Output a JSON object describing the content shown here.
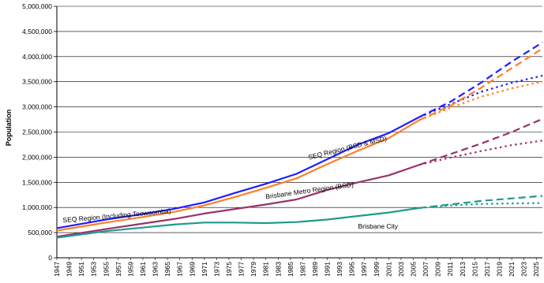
{
  "chart_data": {
    "type": "line",
    "title": "",
    "xlabel": "",
    "ylabel": "Population",
    "ylim": [
      0,
      5000000
    ],
    "xlim": [
      1947,
      2026
    ],
    "grid": "horizontal",
    "legend": "none",
    "y_ticks": [
      "0",
      "500,000",
      "1,000,000",
      "1,500,000",
      "2,000,000",
      "2,500,000",
      "3,000,000",
      "3,500,000",
      "4,000,000",
      "4,500,000",
      "5,000,000"
    ],
    "x_ticks": [
      "1947",
      "1949",
      "1951",
      "1953",
      "1955",
      "1957",
      "1959",
      "1961",
      "1963",
      "1965",
      "1967",
      "1969",
      "1971",
      "1973",
      "1975",
      "1977",
      "1979",
      "1981",
      "1983",
      "1985",
      "1987",
      "1989",
      "1991",
      "1993",
      "1995",
      "1997",
      "1999",
      "2001",
      "2003",
      "2005",
      "2007",
      "2009",
      "2011",
      "2013",
      "2015",
      "2017",
      "2019",
      "2021",
      "2023",
      "2025"
    ],
    "annotations": [
      {
        "text": "SEQ Region (Including Toowoomba)",
        "x": 1948,
        "y": 700000,
        "angle": -5
      },
      {
        "text": "SEQ Region (BSD & MSD)",
        "x": 1988,
        "y": 1950000,
        "angle": -14
      },
      {
        "text": "Brisbane Metro Region (BSD)",
        "x": 1981,
        "y": 1170000,
        "angle": -8
      },
      {
        "text": "Brisbane City",
        "x": 1996,
        "y": 580000,
        "angle": 0
      }
    ],
    "series": [
      {
        "color": "#1f1fff",
        "x": [
          1947,
          1955,
          1961,
          1966,
          1971,
          1976,
          1981,
          1986,
          1991,
          1996,
          2001,
          2006
        ],
        "values": [
          590000,
          760000,
          870000,
          970000,
          1100000,
          1290000,
          1470000,
          1670000,
          1960000,
          2250000,
          2480000,
          2800000
        ],
        "projections": [
          {
            "style": "dashed",
            "x": [
              2006,
              2011,
              2016,
              2021,
              2026
            ],
            "values": [
              2800000,
              3100000,
              3480000,
              3900000,
              4280000
            ]
          },
          {
            "style": "dotted",
            "x": [
              2006,
              2011,
              2016,
              2021,
              2026
            ],
            "values": [
              2800000,
              3050000,
              3300000,
              3480000,
              3620000
            ]
          }
        ]
      },
      {
        "color": "#ff7f27",
        "x": [
          1947,
          1955,
          1961,
          1966,
          1971,
          1976,
          1981,
          1986,
          1991,
          1996,
          2001,
          2006
        ],
        "values": [
          540000,
          700000,
          810000,
          910000,
          1040000,
          1210000,
          1390000,
          1580000,
          1860000,
          2130000,
          2380000,
          2740000
        ],
        "projections": [
          {
            "style": "dashed",
            "x": [
              2006,
              2011,
              2016,
              2021,
              2026
            ],
            "values": [
              2740000,
              3020000,
              3380000,
              3770000,
              4160000
            ]
          },
          {
            "style": "dotted",
            "x": [
              2006,
              2011,
              2016,
              2021,
              2026
            ],
            "values": [
              2740000,
              2980000,
              3200000,
              3370000,
              3500000
            ]
          }
        ]
      },
      {
        "color": "#99336b",
        "x": [
          1947,
          1955,
          1961,
          1966,
          1971,
          1976,
          1981,
          1986,
          1991,
          1996,
          2001,
          2006
        ],
        "values": [
          420000,
          570000,
          680000,
          770000,
          880000,
          970000,
          1060000,
          1160000,
          1350000,
          1500000,
          1640000,
          1850000
        ],
        "projections": [
          {
            "style": "dashed",
            "x": [
              2006,
              2011,
              2016,
              2021,
              2026
            ],
            "values": [
              1850000,
              2060000,
              2270000,
              2500000,
              2760000
            ]
          },
          {
            "style": "dotted",
            "x": [
              2006,
              2011,
              2016,
              2021,
              2026
            ],
            "values": [
              1850000,
              1990000,
              2120000,
              2240000,
              2330000
            ]
          }
        ]
      },
      {
        "color": "#1f9a8a",
        "x": [
          1947,
          1955,
          1961,
          1966,
          1971,
          1976,
          1981,
          1986,
          1991,
          1996,
          2001,
          2006
        ],
        "values": [
          400000,
          530000,
          600000,
          660000,
          700000,
          700000,
          690000,
          710000,
          760000,
          830000,
          900000,
          990000
        ],
        "projections": [
          {
            "style": "dashed",
            "x": [
              2006,
              2011,
              2016,
              2021,
              2026
            ],
            "values": [
              990000,
              1060000,
              1130000,
              1180000,
              1230000
            ]
          },
          {
            "style": "dotted",
            "x": [
              2006,
              2011,
              2016,
              2021,
              2026
            ],
            "values": [
              990000,
              1040000,
              1070000,
              1080000,
              1090000
            ]
          }
        ]
      }
    ]
  }
}
